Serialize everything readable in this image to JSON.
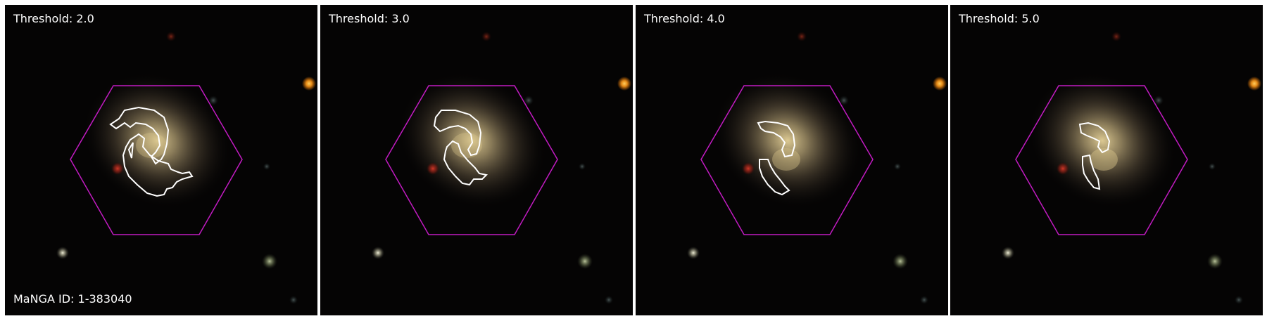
{
  "panels": [
    {
      "threshold_label": "Threshold: 2.0"
    },
    {
      "threshold_label": "Threshold: 3.0"
    },
    {
      "threshold_label": "Threshold: 4.0"
    },
    {
      "threshold_label": "Threshold: 5.0"
    }
  ],
  "manga_id_label": "MaNGA ID: 1-383040",
  "colors": {
    "background": "#050404",
    "hexagon": "#c21bc2",
    "contour": "#ffffff",
    "galaxy_core": "#d8c38a",
    "star_orange": "#ffa21a"
  }
}
